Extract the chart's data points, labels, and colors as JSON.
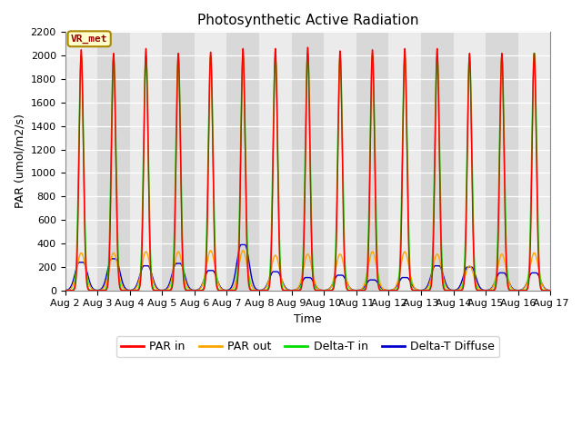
{
  "title": "Photosynthetic Active Radiation",
  "xlabel": "Time",
  "ylabel": "PAR (umol/m2/s)",
  "ylim": [
    0,
    2200
  ],
  "xlim": [
    0,
    15
  ],
  "xtick_labels": [
    "Aug 2",
    "Aug 3",
    "Aug 4",
    "Aug 5",
    "Aug 6",
    "Aug 7",
    "Aug 8",
    "Aug 9",
    "Aug 10",
    "Aug 11",
    "Aug 12",
    "Aug 13",
    "Aug 14",
    "Aug 15",
    "Aug 16",
    "Aug 17"
  ],
  "xtick_positions": [
    0,
    1,
    2,
    3,
    4,
    5,
    6,
    7,
    8,
    9,
    10,
    11,
    12,
    13,
    14,
    15
  ],
  "ytick_labels": [
    "0",
    "200",
    "400",
    "600",
    "800",
    "1000",
    "1200",
    "1400",
    "1600",
    "1800",
    "2000",
    "2200"
  ],
  "ytick_positions": [
    0,
    200,
    400,
    600,
    800,
    1000,
    1200,
    1400,
    1600,
    1800,
    2000,
    2200
  ],
  "annotation_text": "VR_met",
  "colors": {
    "par_in": "#ff0000",
    "par_out": "#ffa500",
    "delta_t_in": "#00dd00",
    "delta_t_diffuse": "#0000cc",
    "bg_dark": "#d8d8d8",
    "bg_light": "#ebebeb",
    "annotation_bg": "#ffffcc",
    "annotation_border": "#aa8800",
    "annotation_text": "#990000"
  },
  "legend_labels": [
    "PAR in",
    "PAR out",
    "Delta-T in",
    "Delta-T Diffuse"
  ],
  "num_days": 15,
  "peak_par_in": [
    2050,
    2020,
    2060,
    2020,
    2030,
    2060,
    2060,
    2070,
    2040,
    2050,
    2060,
    2060,
    2020,
    2020,
    2020
  ],
  "peak_par_out": [
    320,
    320,
    330,
    330,
    340,
    340,
    300,
    310,
    310,
    330,
    330,
    310,
    210,
    310,
    320
  ],
  "peak_delta_t_in": [
    1990,
    1980,
    1990,
    1980,
    1990,
    1990,
    1990,
    2020,
    1990,
    2000,
    1990,
    1990,
    1990,
    1980,
    2020
  ],
  "peak_delta_t_diffuse": [
    240,
    270,
    210,
    230,
    170,
    390,
    160,
    110,
    130,
    90,
    110,
    210,
    200,
    150,
    150
  ],
  "par_in_sigma": 0.065,
  "par_out_sigma": 0.13,
  "delta_t_in_sigma": 0.072,
  "delta_t_diffuse_sigma": 0.13,
  "delta_t_diffuse_flat_half": 0.06
}
